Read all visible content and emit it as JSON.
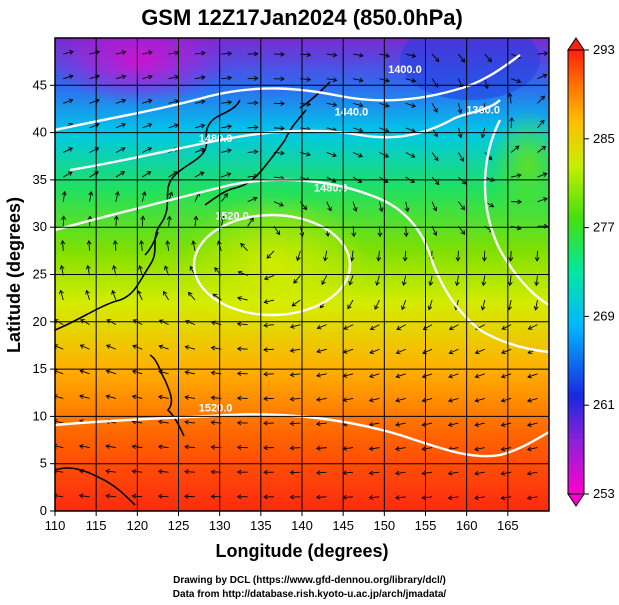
{
  "chart_data": {
    "type": "heatmap",
    "title": "GSM 12Z17Jan2024 (850.0hPa)",
    "xlabel": "Longitude (degrees)",
    "ylabel": "Latitude  (degrees)",
    "xlim": [
      110,
      170
    ],
    "ylim": [
      0,
      50
    ],
    "xticks": [
      "110",
      "115",
      "120",
      "125",
      "130",
      "135",
      "140",
      "145",
      "150",
      "155",
      "160",
      "165"
    ],
    "yticks": [
      "0",
      "5",
      "10",
      "15",
      "20",
      "25",
      "30",
      "35",
      "40",
      "45"
    ],
    "grid": true,
    "colorbar": {
      "min": 253,
      "max": 293,
      "ticks": [
        "253",
        "261",
        "269",
        "277",
        "285",
        "293"
      ],
      "placement": "right"
    },
    "contours": [
      {
        "label": "1400.0",
        "lon": 152.5,
        "lat": 46.3
      },
      {
        "label": "1440.0",
        "lon": 146.0,
        "lat": 41.8
      },
      {
        "label": "1480.0",
        "lon": 129.5,
        "lat": 39.0
      },
      {
        "label": "1480.0",
        "lon": 143.5,
        "lat": 33.8
      },
      {
        "label": "1520.0",
        "lon": 131.5,
        "lat": 30.8
      },
      {
        "label": "1360.0",
        "lon": 162.0,
        "lat": 42.0
      },
      {
        "label": "1520.0",
        "lon": 129.5,
        "lat": 10.5
      }
    ]
  },
  "credits": {
    "line1": "Drawing by DCL (https://www.gfd-dennou.org/library/dcl/)",
    "line2": "Data from http://database.rish.kyoto-u.ac.jp/arch/jmadata/"
  }
}
